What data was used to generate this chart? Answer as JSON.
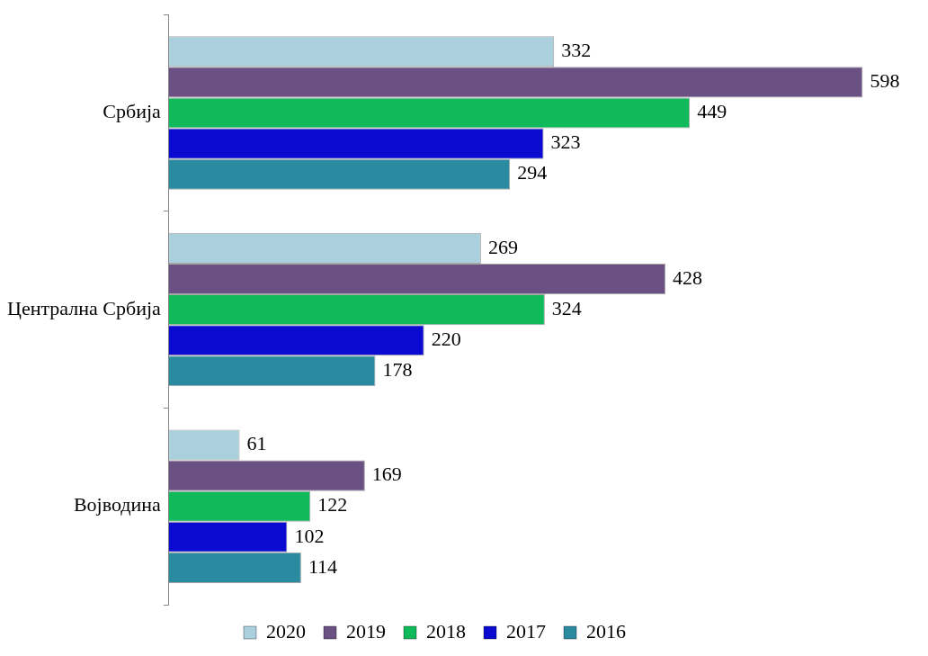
{
  "chart_data": {
    "type": "bar",
    "orientation": "horizontal",
    "categories": [
      "Србија",
      "Централна Србија",
      "Војводина"
    ],
    "series": [
      {
        "name": "2020",
        "color": "#a9d0dc",
        "values": [
          332,
          269,
          61
        ]
      },
      {
        "name": "2019",
        "color": "#6a5083",
        "values": [
          598,
          428,
          169
        ]
      },
      {
        "name": "2018",
        "color": "#10b95a",
        "values": [
          449,
          324,
          122
        ]
      },
      {
        "name": "2017",
        "color": "#0a0ad0",
        "values": [
          323,
          220,
          102
        ]
      },
      {
        "name": "2016",
        "color": "#2a8aa0",
        "values": [
          294,
          178,
          114
        ]
      }
    ],
    "data_labels": true,
    "legend": "bottom"
  }
}
